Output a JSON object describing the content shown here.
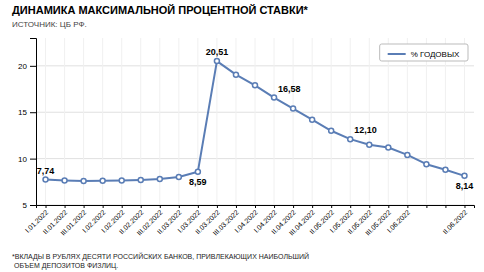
{
  "chart_data": {
    "type": "line",
    "title": "ДИНАМИКА МАКСИМАЛЬНОЙ ПРОЦЕНТНОЙ СТАВКИ*",
    "source": "ИСТОЧНИК: ЦБ РФ.",
    "footnote": "*ВКЛАДЫ В РУБЛЯХ ДЕСЯТИ РОССИЙСКИХ БАНКОВ, ПРИВЛЕКАЮЩИХ НАИБОЛЬШИЙ\n ОБЪЕМ ДЕПОЗИТОВ ФИЗЛИЦ.",
    "categories": [
      "I.01.2022",
      "II.01.2022",
      "III.01.2022",
      "I.02.2022",
      "I.02.2022",
      "II.02.2022",
      "III.02.2022",
      "II.03.2022",
      "I.03.2022",
      "II.03.2022",
      "III.03.2022",
      "I.04.2022",
      "I.04.2022",
      "II.04.2022",
      "III.04.2022",
      "II.05.2022",
      "I.05.2022",
      "II.05.2022",
      "III.05.2022",
      "I.06.2022",
      null,
      null,
      "II.06.2022"
    ],
    "series": [
      {
        "name": "% ГОДОВЫХ",
        "color": "#5a7db5",
        "marker": "circle",
        "values": [
          7.74,
          7.65,
          7.6,
          7.62,
          7.64,
          7.7,
          7.8,
          8.02,
          8.59,
          20.51,
          19.05,
          17.9,
          16.58,
          15.4,
          14.2,
          13.0,
          12.1,
          11.5,
          11.2,
          10.4,
          9.4,
          8.8,
          8.14
        ],
        "value_labels": [
          "7,74",
          null,
          null,
          null,
          null,
          null,
          null,
          null,
          "8,59",
          "20,51",
          null,
          null,
          "16,58",
          null,
          null,
          null,
          "12,10",
          null,
          null,
          null,
          null,
          null,
          "8,14"
        ]
      }
    ],
    "ylim": [
      5,
      23
    ],
    "yticks": [
      5,
      10,
      15,
      20
    ],
    "grid": true,
    "legend": "upper right"
  }
}
